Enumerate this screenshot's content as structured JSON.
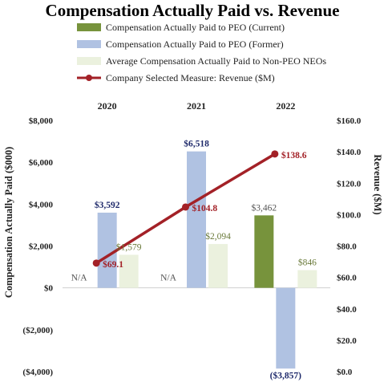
{
  "chart_data": {
    "type": "bar",
    "title": "Compensation Actually Paid vs. Revenue",
    "ylabel": "Compensation Actually Paid ($000)",
    "y2label": "Revenue ($M)",
    "categories": [
      "2020",
      "2021",
      "2022"
    ],
    "ylim": [
      -4000,
      8000
    ],
    "y2lim": [
      0,
      160
    ],
    "y_ticks": [
      "$8,000",
      "$6,000",
      "$4,000",
      "$2,000",
      "$0",
      "($2,000)",
      "($4,000)"
    ],
    "y2_ticks": [
      "$160.0",
      "$140.0",
      "$120.0",
      "$100.0",
      "$80.0",
      "$60.0",
      "$40.0",
      "$20.0",
      "$0.0"
    ],
    "legend_position": "top",
    "series": [
      {
        "name": "Compensation Actually Paid to PEO (Current)",
        "color": "#77933c",
        "values": [
          null,
          null,
          3462
        ],
        "labels": [
          "N/A",
          "N/A",
          "$3,462"
        ]
      },
      {
        "name": "Compensation Actually Paid to PEO (Former)",
        "color": "#b0c2e2",
        "values": [
          3592,
          6518,
          -3857
        ],
        "labels": [
          "$3,592",
          "$6,518",
          "($3,857)"
        ]
      },
      {
        "name": "Average Compensation Actually Paid to Non-PEO NEOs",
        "color": "#ebf1de",
        "values": [
          1579,
          2094,
          846
        ],
        "labels": [
          "$1,579",
          "$2,094",
          "$846"
        ]
      }
    ],
    "line_series": {
      "name": "Company Selected Measure: Revenue ($M)",
      "color": "#a32127",
      "axis": "secondary",
      "values": [
        69.1,
        104.8,
        138.6
      ],
      "labels": [
        "$69.1",
        "$104.8",
        "$138.6"
      ]
    }
  }
}
